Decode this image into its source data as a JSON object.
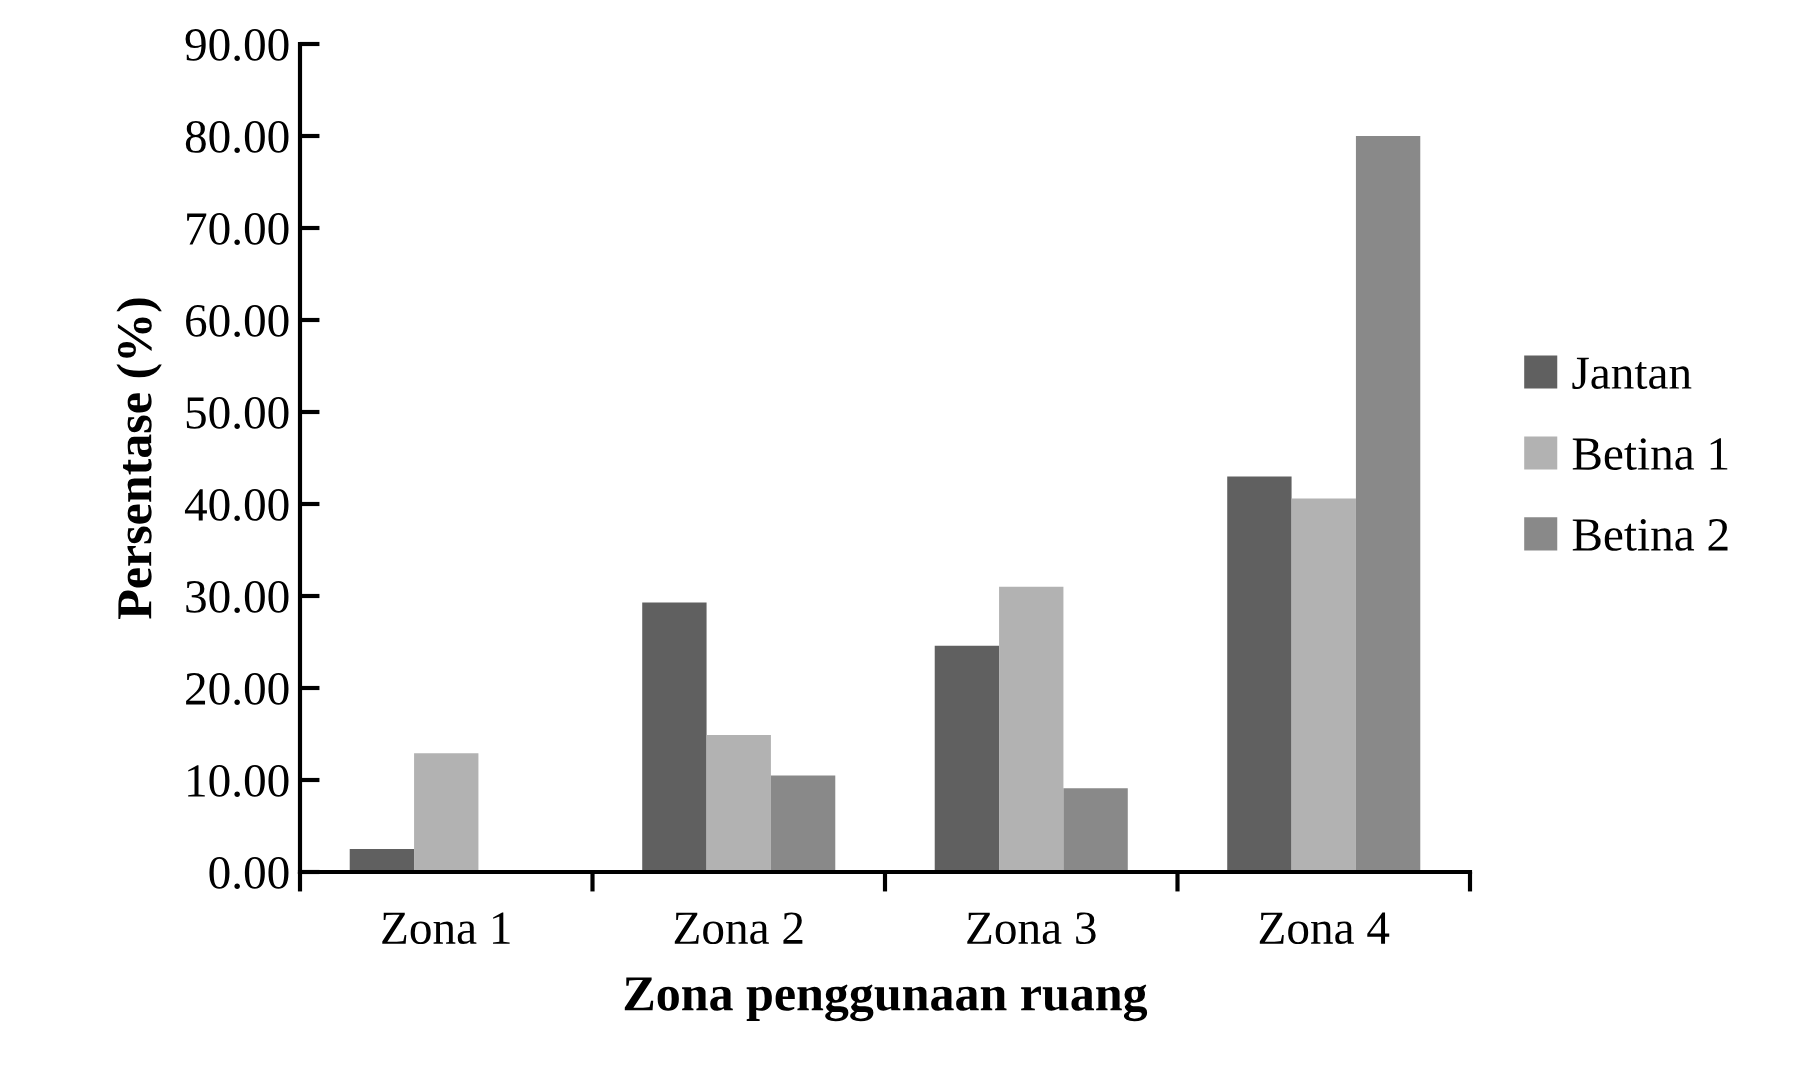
{
  "chart_data": {
    "type": "bar",
    "xlabel": "Zona penggunaan ruang",
    "ylabel": "Persentase (%)",
    "categories": [
      "Zona 1",
      "Zona 2",
      "Zona 3",
      "Zona 4"
    ],
    "series": [
      {
        "name": "Jantan",
        "color": "#606060",
        "values": [
          2.5,
          29.3,
          24.6,
          43.0
        ]
      },
      {
        "name": "Betina 1",
        "color": "#b2b2b2",
        "values": [
          12.9,
          14.9,
          31.0,
          40.6
        ]
      },
      {
        "name": "Betina 2",
        "color": "#898989",
        "values": [
          0,
          10.5,
          9.1,
          80.0
        ]
      }
    ],
    "ylim": [
      0,
      90
    ],
    "yticks": [
      {
        "value": 0,
        "label": "0.00"
      },
      {
        "value": 10,
        "label": "10.00"
      },
      {
        "value": 20,
        "label": "20.00"
      },
      {
        "value": 30,
        "label": "30.00"
      },
      {
        "value": 40,
        "label": "40.00"
      },
      {
        "value": 50,
        "label": "50.00"
      },
      {
        "value": 60,
        "label": "60.00"
      },
      {
        "value": 70,
        "label": "70.00"
      },
      {
        "value": 80,
        "label": "80.00"
      },
      {
        "value": 90,
        "label": "90.00"
      }
    ],
    "grid": false,
    "legend": "right"
  }
}
